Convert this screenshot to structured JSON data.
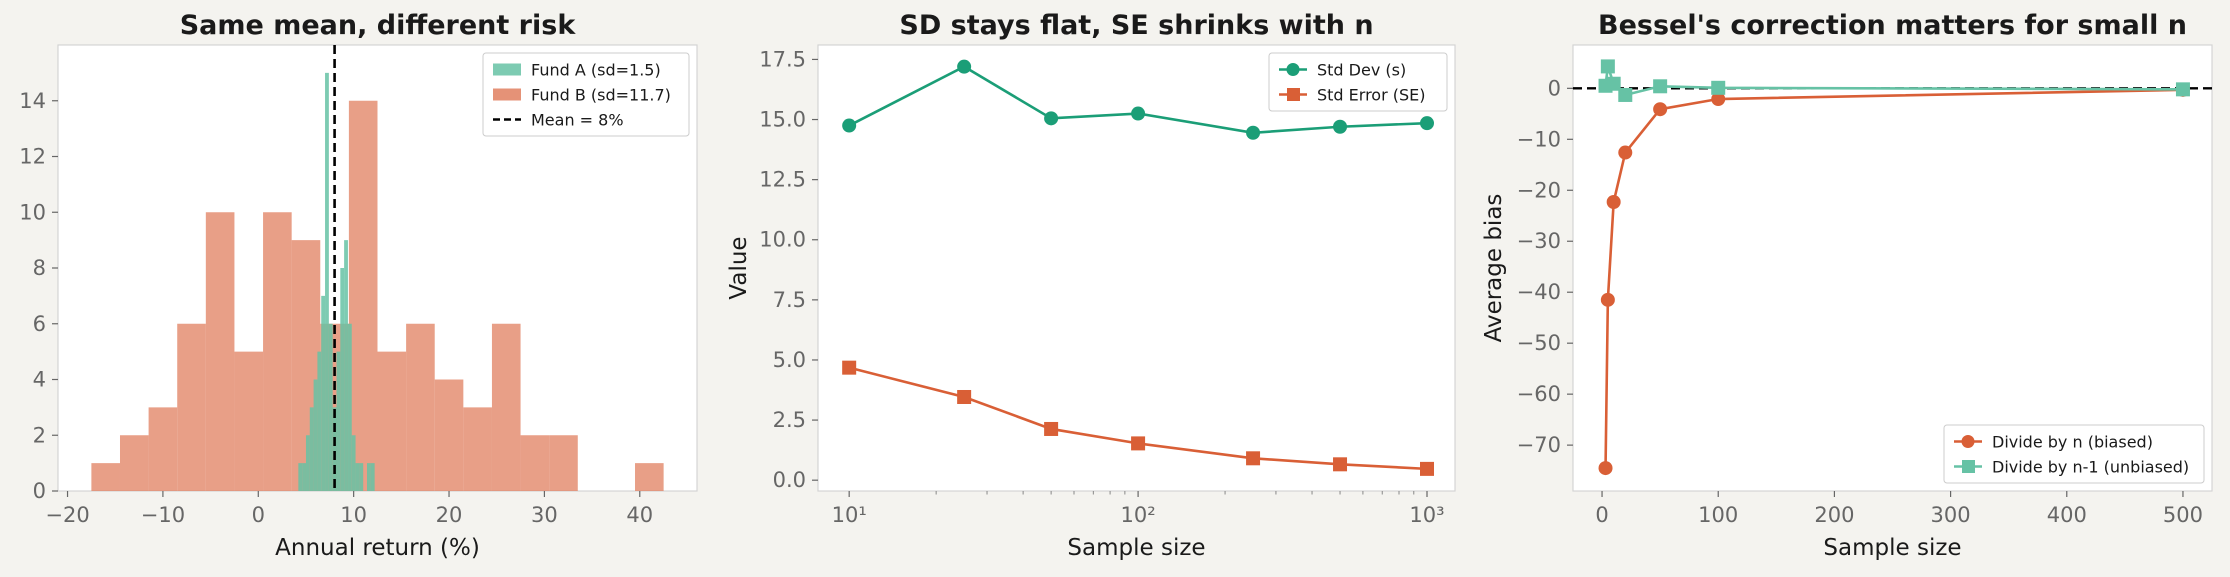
{
  "colors": {
    "figure_bg": "#f4f3ef",
    "plot_bg": "#ffffff",
    "frame": "#d4d4d4",
    "fund_a": "#66c2a5",
    "fund_b": "#e07f5f",
    "std_dev": "#1b9e77",
    "std_error": "#d95f36",
    "biased": "#d95f36",
    "unbiased": "#66c2a5",
    "ref_line": "#000000"
  },
  "chart_data": [
    {
      "type": "histogram",
      "title": "Same mean, different risk",
      "xlabel": "Annual return (%)",
      "ylabel": "",
      "xlim": [
        -21,
        46
      ],
      "ylim": [
        0,
        16
      ],
      "xticks": [
        -20,
        -10,
        0,
        10,
        20,
        30,
        40
      ],
      "xtick_labels": [
        "−20",
        "−10",
        "0",
        "10",
        "20",
        "30",
        "40"
      ],
      "yticks": [
        0,
        2,
        4,
        6,
        8,
        10,
        12,
        14
      ],
      "yticks_labels": [
        "0",
        "2",
        "4",
        "6",
        "8",
        "10",
        "12",
        "14"
      ],
      "grid": false,
      "legend_position": "top-right",
      "series": [
        {
          "name": "Fund B (sd=11.7)",
          "color_key": "fund_b",
          "bins": [
            -17.5,
            -14.5,
            -11.5,
            -8.5,
            -5.5,
            -2.5,
            0.5,
            3.5,
            6.5,
            9.5,
            12.5,
            15.5,
            18.5,
            21.5,
            24.5,
            27.5,
            30.5,
            33.5,
            36.5,
            39.5,
            42.5
          ],
          "counts": [
            1,
            2,
            3,
            6,
            10,
            5,
            10,
            9,
            6,
            14,
            5,
            6,
            4,
            3,
            6,
            2,
            2,
            0,
            0,
            1
          ]
        },
        {
          "name": "Fund A (sd=1.5)",
          "color_key": "fund_a",
          "bins": [
            4.2,
            4.6,
            5.0,
            5.4,
            5.8,
            6.2,
            6.6,
            7.0,
            7.4,
            7.8,
            8.2,
            8.6,
            9.0,
            9.4,
            9.8,
            10.2,
            10.6,
            11.0,
            11.4,
            11.8,
            12.2
          ],
          "counts": [
            1,
            1,
            2,
            3,
            4,
            5,
            7,
            15,
            6,
            3,
            5,
            8,
            9,
            6,
            2,
            1,
            1,
            0,
            1,
            1
          ]
        }
      ],
      "reference_line": {
        "name": "Mean = 8%",
        "x": 8,
        "style": "dashed"
      }
    },
    {
      "type": "line",
      "title": "SD stays flat, SE shrinks with n",
      "xlabel": "Sample size",
      "ylabel": "Value",
      "xscale": "log",
      "xlim": [
        7.8,
        1250
      ],
      "ylim": [
        -0.45,
        18.1
      ],
      "xticks": [
        10,
        100,
        1000
      ],
      "xtick_labels": [
        "10¹",
        "10²",
        "10³"
      ],
      "yticks": [
        0,
        2.5,
        5,
        7.5,
        10,
        12.5,
        15,
        17.5
      ],
      "ytick_labels": [
        "0.0",
        "2.5",
        "5.0",
        "7.5",
        "10.0",
        "12.5",
        "15.0",
        "17.5"
      ],
      "grid": false,
      "legend_position": "top-right",
      "x": [
        10,
        25,
        50,
        100,
        250,
        500,
        1000
      ],
      "series": [
        {
          "name": "Std Dev (s)",
          "marker": "circle",
          "color_key": "std_dev",
          "values": [
            14.75,
            17.2,
            15.05,
            15.25,
            14.45,
            14.7,
            14.85
          ]
        },
        {
          "name": "Std Error (SE)",
          "marker": "square",
          "color_key": "std_error",
          "values": [
            4.68,
            3.46,
            2.13,
            1.53,
            0.91,
            0.66,
            0.47
          ]
        }
      ]
    },
    {
      "type": "line",
      "title": "Bessel's correction matters for small n",
      "xlabel": "Sample size",
      "ylabel": "Average bias",
      "xlim": [
        -25,
        525
      ],
      "ylim": [
        -79,
        8.5
      ],
      "xticks": [
        0,
        100,
        200,
        300,
        400,
        500
      ],
      "xtick_labels": [
        "0",
        "100",
        "200",
        "300",
        "400",
        "500"
      ],
      "yticks": [
        0,
        -10,
        -20,
        -30,
        -40,
        -50,
        -60,
        -70
      ],
      "ytick_labels": [
        "0",
        "−10",
        "−20",
        "−30",
        "−40",
        "−50",
        "−60",
        "−70"
      ],
      "grid": false,
      "legend_position": "bottom-right",
      "x": [
        3,
        5,
        10,
        20,
        50,
        100,
        500
      ],
      "series": [
        {
          "name": "Divide by n (biased)",
          "marker": "circle",
          "color_key": "biased",
          "values": [
            -74.5,
            -41.5,
            -22.3,
            -12.6,
            -4.1,
            -2.1,
            -0.3
          ]
        },
        {
          "name": "Divide by n-1 (unbiased)",
          "marker": "square",
          "color_key": "unbiased",
          "values": [
            0.5,
            4.3,
            0.9,
            -1.3,
            0.4,
            0.1,
            -0.2
          ]
        }
      ],
      "reference_line": {
        "y": 0,
        "style": "dashed"
      }
    }
  ]
}
